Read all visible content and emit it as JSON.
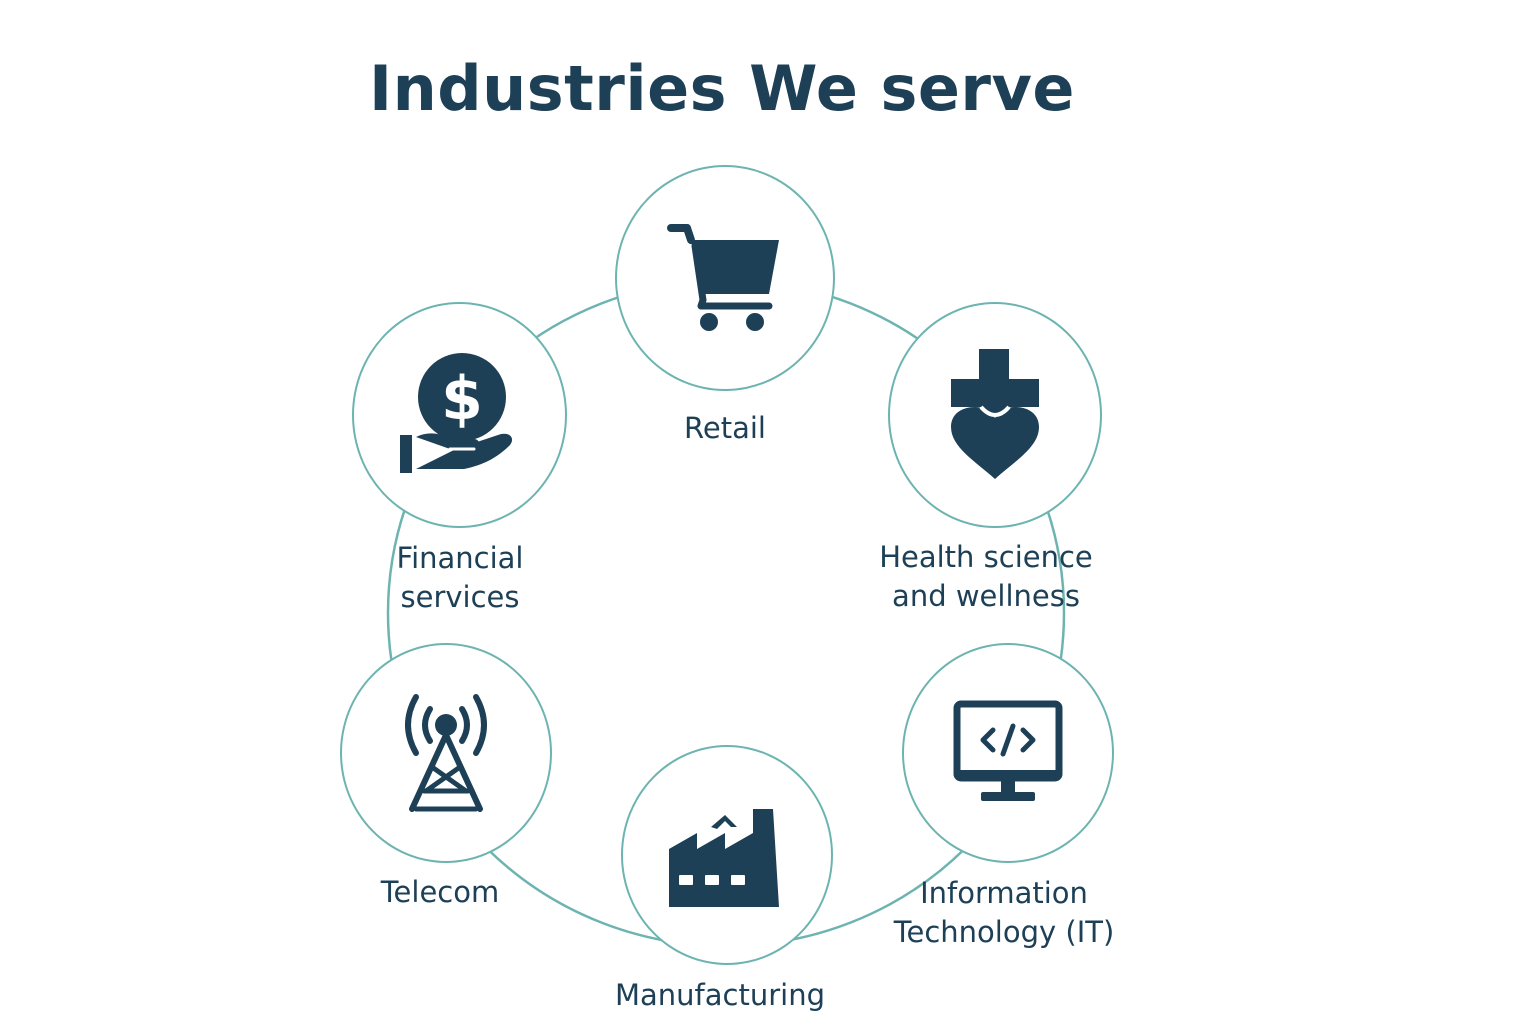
{
  "title": "Industries We serve",
  "colors": {
    "primary": "#1e4057",
    "ring": "#6db4b1",
    "background": "#ffffff"
  },
  "industries": [
    {
      "label": "Retail",
      "icon": "shopping-cart-icon"
    },
    {
      "label": "Health science\nand wellness",
      "icon": "health-cross-heart-icon"
    },
    {
      "label": "Information\nTechnology (IT)",
      "icon": "code-monitor-icon"
    },
    {
      "label": "Manufacturing",
      "icon": "factory-icon"
    },
    {
      "label": "Telecom",
      "icon": "cell-tower-icon"
    },
    {
      "label": "Financial\nservices",
      "icon": "hand-coin-dollar-icon"
    }
  ]
}
